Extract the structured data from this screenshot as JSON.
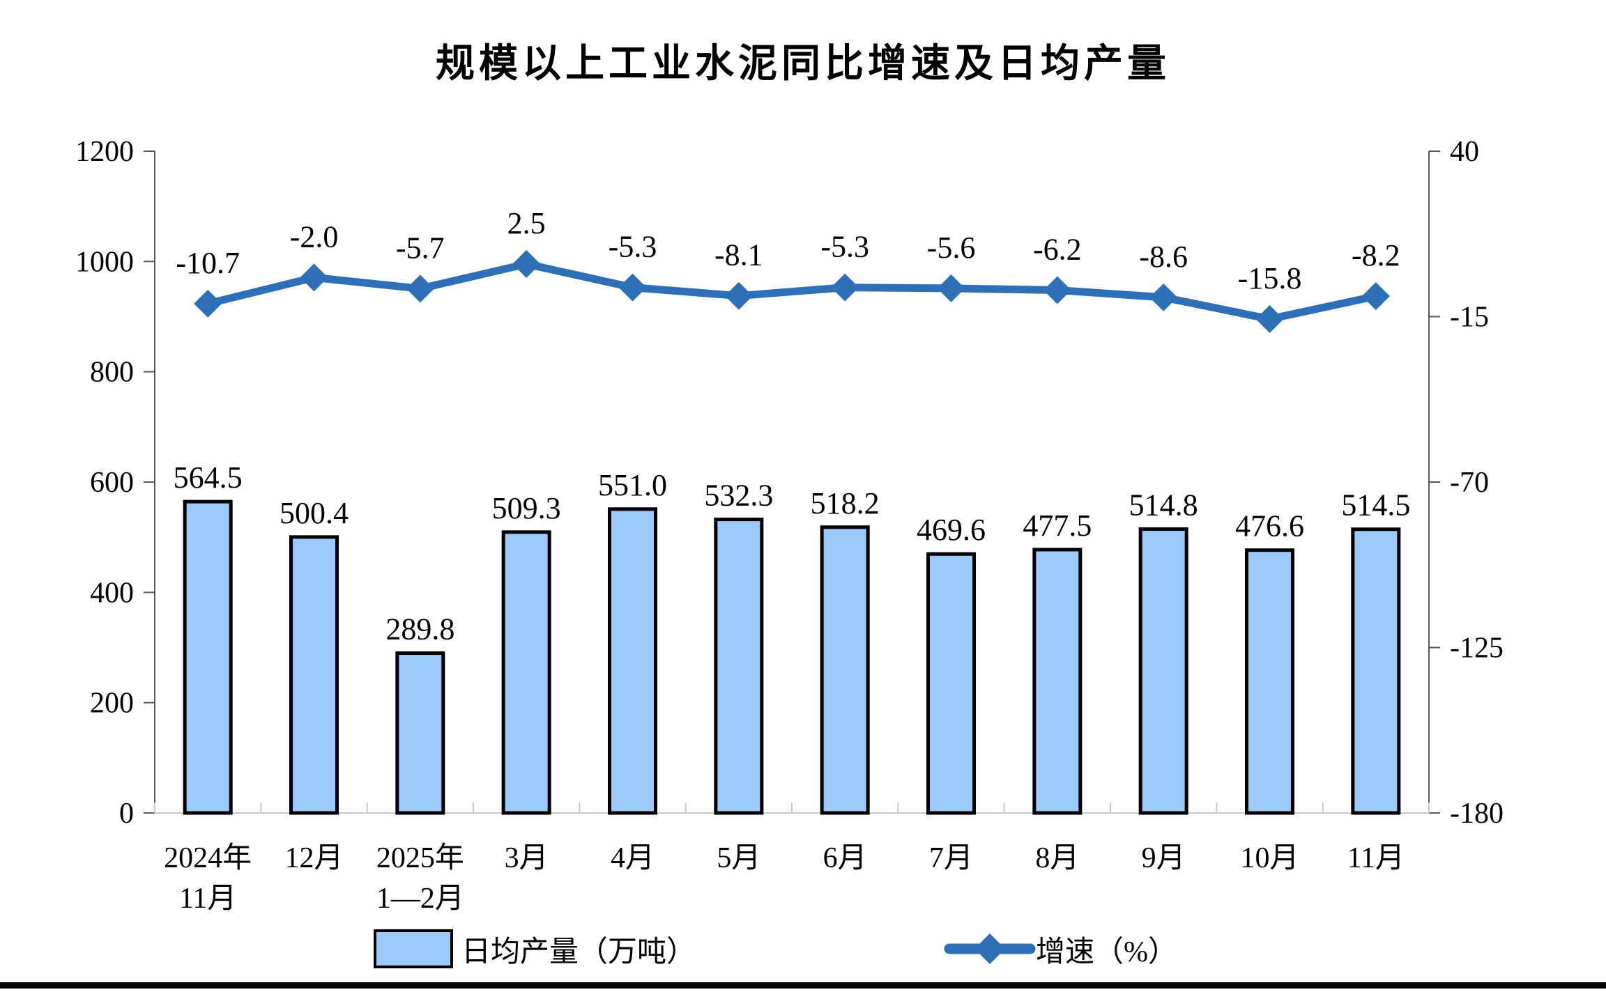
{
  "page": {
    "title": "规模以上工业水泥同比增速及日均产量"
  },
  "chart_data": {
    "type": "bar",
    "subtype": "bar+line combo, dual y-axes",
    "title": "规模以上工业水泥同比增速及日均产量",
    "categories": [
      [
        "2024年",
        "11月"
      ],
      [
        "12月"
      ],
      [
        "2025年",
        "1—2月"
      ],
      [
        "3月"
      ],
      [
        "4月"
      ],
      [
        "5月"
      ],
      [
        "6月"
      ],
      [
        "7月"
      ],
      [
        "8月"
      ],
      [
        "9月"
      ],
      [
        "10月"
      ],
      [
        "11月"
      ]
    ],
    "series": [
      {
        "name": "日均产量（万吨）",
        "type": "bar",
        "axis": "left",
        "color": "#9CC9FA",
        "border_color": "#000000",
        "values": [
          564.5,
          500.4,
          289.8,
          509.3,
          551.0,
          532.3,
          518.2,
          469.6,
          477.5,
          514.8,
          476.6,
          514.5
        ]
      },
      {
        "name": "增速（%）",
        "type": "line",
        "axis": "right",
        "color": "#2E70B8",
        "marker": "diamond",
        "values": [
          -10.7,
          -2.0,
          -5.7,
          2.5,
          -5.3,
          -8.1,
          -5.3,
          -5.6,
          -6.2,
          -8.6,
          -15.8,
          -8.2
        ]
      }
    ],
    "left_axis": {
      "min": 0,
      "max": 1200,
      "ticks": [
        0,
        200,
        400,
        600,
        800,
        1000,
        1200
      ]
    },
    "right_axis": {
      "min": -180,
      "max": 40,
      "ticks": [
        40,
        -15,
        -70,
        -125,
        -180
      ]
    },
    "grid": false,
    "data_labels": true,
    "legend_position": "bottom"
  },
  "colors": {
    "bar_fill": "#9CC9FA",
    "bar_border": "#000000",
    "line": "#2E70B8",
    "side_axis": "#595959",
    "bottom_axis": "#C9C9C9",
    "label_text": "#000000"
  }
}
